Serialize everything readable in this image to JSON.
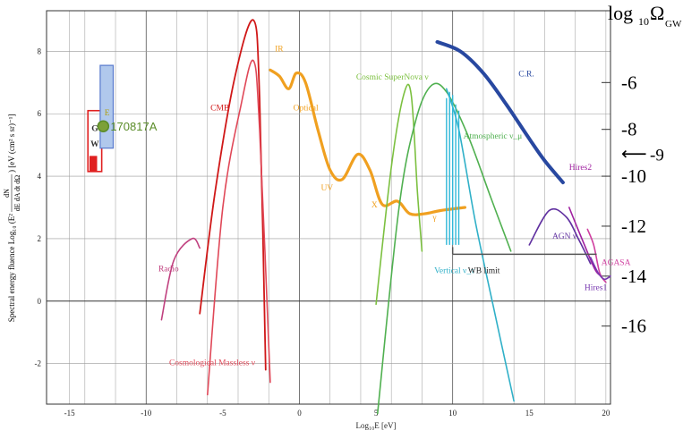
{
  "chart_data": {
    "type": "line",
    "title": "",
    "xlabel": "Log₁₀E [eV]",
    "ylabel_top": "dN",
    "ylabel_main": "Spectral energy fluence Log₁₀ (E²",
    "ylabel_denom": "dE dA dt dΩ",
    "ylabel_units": ") [eV (cm² s sr)⁻¹]",
    "right_axis_label_main": "log",
    "right_axis_label_sub": "10",
    "right_axis_label_omega": "Ω",
    "right_axis_label_gw": "GW",
    "xlim": [
      -16.5,
      20.3
    ],
    "ylim": [
      -3.3,
      9.3
    ],
    "x_ticks": [
      -15,
      -10,
      -5,
      0,
      5,
      10,
      15,
      20
    ],
    "x_tick_labels": [
      "-15",
      "-10",
      "-5",
      "0",
      "5",
      "10",
      "15",
      "20"
    ],
    "y_ticks": [
      -2,
      0,
      2,
      4,
      6,
      8
    ],
    "y_tick_labels": [
      "-2",
      "0",
      "2",
      "4",
      "6",
      "8"
    ],
    "right_ticks": [
      {
        "y": 7.0,
        "label": "-6"
      },
      {
        "y": 5.5,
        "label": "-8"
      },
      {
        "y": 4.0,
        "label": "-10"
      },
      {
        "y": 2.4,
        "label": "-12"
      },
      {
        "y": 0.8,
        "label": "-14"
      },
      {
        "y": -0.8,
        "label": "-16"
      }
    ],
    "right_marker": {
      "y": 4.7,
      "label": "-9",
      "symbol": "⟵"
    },
    "grid_x": [
      -15,
      -14,
      -12,
      -10,
      -8,
      -6,
      -4,
      -2,
      0,
      2,
      4,
      6,
      8,
      10,
      12,
      14,
      16,
      18,
      20
    ],
    "grid_y": [
      -2,
      0,
      2,
      4,
      6,
      8
    ],
    "series": [
      {
        "name": "Radio",
        "color": "#c0407f",
        "points": [
          [
            -9,
            -0.6
          ],
          [
            -8.2,
            1.3
          ],
          [
            -7.0,
            2.0
          ],
          [
            -6.5,
            1.7
          ]
        ]
      },
      {
        "name": "CMB",
        "color": "#d01818",
        "points": [
          [
            -6.5,
            -0.4
          ],
          [
            -5.5,
            3.5
          ],
          [
            -4.2,
            7.2
          ],
          [
            -3.0,
            9.0
          ],
          [
            -2.6,
            6.5
          ],
          [
            -2.2,
            -2.2
          ]
        ]
      },
      {
        "name": "Cosmological Massless ν",
        "color": "#e04858",
        "points": [
          [
            -6.0,
            -3.0
          ],
          [
            -5.0,
            3.0
          ],
          [
            -3.8,
            6.3
          ],
          [
            -3.0,
            7.7
          ],
          [
            -2.6,
            5.5
          ],
          [
            -1.9,
            -2.6
          ]
        ]
      },
      {
        "name": "IR-Optical-UV-X-γ",
        "color": "#f0a020",
        "points": [
          [
            -1.9,
            7.4
          ],
          [
            -1.3,
            7.2
          ],
          [
            -0.7,
            6.8
          ],
          [
            -0.2,
            7.3
          ],
          [
            0.4,
            7.0
          ],
          [
            1.2,
            5.5
          ],
          [
            2.0,
            4.2
          ],
          [
            2.8,
            3.9
          ],
          [
            3.8,
            4.7
          ],
          [
            4.6,
            4.2
          ],
          [
            5.4,
            3.1
          ],
          [
            6.4,
            3.2
          ],
          [
            7.2,
            2.8
          ],
          [
            8.2,
            2.8
          ],
          [
            9.2,
            2.9
          ],
          [
            10.8,
            3.0
          ]
        ]
      },
      {
        "name": "Cosmic SuperNova ν",
        "color": "#7cc040",
        "points": [
          [
            5.0,
            -0.1
          ],
          [
            6.0,
            4.3
          ],
          [
            6.8,
            6.6
          ],
          [
            7.3,
            6.6
          ],
          [
            7.7,
            3.5
          ],
          [
            8.0,
            1.6
          ]
        ]
      },
      {
        "name": "Atmospheric ν_μ",
        "color": "#50b050",
        "points": [
          [
            5.1,
            -3.6
          ],
          [
            6.5,
            3.0
          ],
          [
            7.6,
            5.8
          ],
          [
            8.6,
            6.9
          ],
          [
            9.6,
            6.7
          ],
          [
            11.0,
            5.3
          ],
          [
            12.5,
            3.3
          ],
          [
            13.8,
            1.6
          ]
        ]
      },
      {
        "name": "Vertical ν_τ",
        "color": "#30b0c8",
        "points": [
          [
            9.6,
            6.8
          ],
          [
            10.4,
            5.5
          ],
          [
            11.5,
            2.5
          ],
          [
            12.8,
            -0.5
          ],
          [
            14.0,
            -3.2
          ]
        ]
      },
      {
        "name": "C.R.",
        "color": "#2848a0",
        "points": [
          [
            9.0,
            8.3
          ],
          [
            10.5,
            8.0
          ],
          [
            12.0,
            7.3
          ],
          [
            13.5,
            6.3
          ],
          [
            15.0,
            5.2
          ],
          [
            16.0,
            4.5
          ],
          [
            17.2,
            3.8
          ]
        ]
      },
      {
        "name": "AGN ν",
        "color": "#6030a0",
        "points": [
          [
            15.0,
            1.8
          ],
          [
            16.3,
            2.9
          ],
          [
            17.4,
            2.7
          ],
          [
            18.2,
            2.0
          ],
          [
            19.0,
            1.2
          ]
        ]
      },
      {
        "name": "Hires2",
        "color": "#a020a0",
        "points": [
          [
            17.6,
            3.0
          ],
          [
            18.6,
            1.8
          ],
          [
            19.3,
            1.0
          ],
          [
            19.7,
            0.8
          ]
        ]
      },
      {
        "name": "AGASA",
        "color": "#d040a0",
        "points": [
          [
            18.8,
            2.3
          ],
          [
            19.2,
            1.8
          ],
          [
            19.6,
            0.9
          ],
          [
            20.0,
            0.6
          ]
        ]
      },
      {
        "name": "Hires1",
        "color": "#7838b0",
        "points": [
          [
            19.0,
            1.4
          ],
          [
            19.5,
            0.9
          ],
          [
            19.9,
            0.7
          ],
          [
            20.3,
            0.8
          ]
        ]
      }
    ],
    "wb_limit": {
      "x0": 10.0,
      "x1": 19.4,
      "y": 1.5,
      "label": "WB limit",
      "color": "#555555"
    },
    "spike_group": {
      "color": "#30b8d8",
      "spikes": [
        [
          9.6,
          6.5
        ],
        [
          9.8,
          6.7
        ],
        [
          10.0,
          6.6
        ],
        [
          10.2,
          6.3
        ],
        [
          10.4,
          6.1
        ]
      ],
      "base_y": 1.8
    },
    "gw_event": {
      "label": "170817A",
      "x": -12.8,
      "y": 5.6,
      "box_label": "E",
      "box_color": "#6080d0",
      "box_fill": "#b0c8ec",
      "dot_color": "#5a8c28",
      "dot_fill": "#7ca038"
    },
    "gw_box": {
      "label": "G\nW",
      "label_g": "G",
      "label_w": "W",
      "color": "#e02020"
    },
    "annotations": [
      {
        "text": "Radio",
        "x": -9.2,
        "y": 0.95,
        "color": "#c0407f"
      },
      {
        "text": "CMB",
        "x": -5.8,
        "y": 6.1,
        "color": "#d01818"
      },
      {
        "text": "Cosmological Massless ν",
        "x": -8.5,
        "y": -2.05,
        "color": "#e04858"
      },
      {
        "text": "IR",
        "x": -1.6,
        "y": 8.0,
        "color": "#f0a020"
      },
      {
        "text": "Optical",
        "x": -0.4,
        "y": 6.1,
        "color": "#f0a020"
      },
      {
        "text": "UV",
        "x": 1.4,
        "y": 3.55,
        "color": "#f0a020"
      },
      {
        "text": "X",
        "x": 4.7,
        "y": 3.0,
        "color": "#f0a020"
      },
      {
        "text": "γ",
        "x": 8.7,
        "y": 2.6,
        "color": "#f0a020"
      },
      {
        "text": "Cosmic SuperNova ν",
        "x": 3.7,
        "y": 7.1,
        "color": "#7cc040"
      },
      {
        "text": "Atmospheric ν_μ",
        "x": 10.7,
        "y": 5.2,
        "color": "#50b050"
      },
      {
        "text": "Vertical ν_τ",
        "x": 8.8,
        "y": 0.9,
        "color": "#30b0c8"
      },
      {
        "text": "WB limit",
        "x": 11.0,
        "y": 0.9,
        "color": "#222222"
      },
      {
        "text": "C.R.",
        "x": 14.3,
        "y": 7.2,
        "color": "#2848a0"
      },
      {
        "text": "Hires2",
        "x": 17.6,
        "y": 4.2,
        "color": "#a020a0"
      },
      {
        "text": "AGN ν",
        "x": 16.5,
        "y": 2.0,
        "color": "#6030a0"
      },
      {
        "text": "AGASA",
        "x": 19.7,
        "y": 1.15,
        "color": "#d040a0"
      },
      {
        "text": "Hires1",
        "x": 18.6,
        "y": 0.35,
        "color": "#7838b0"
      }
    ]
  }
}
